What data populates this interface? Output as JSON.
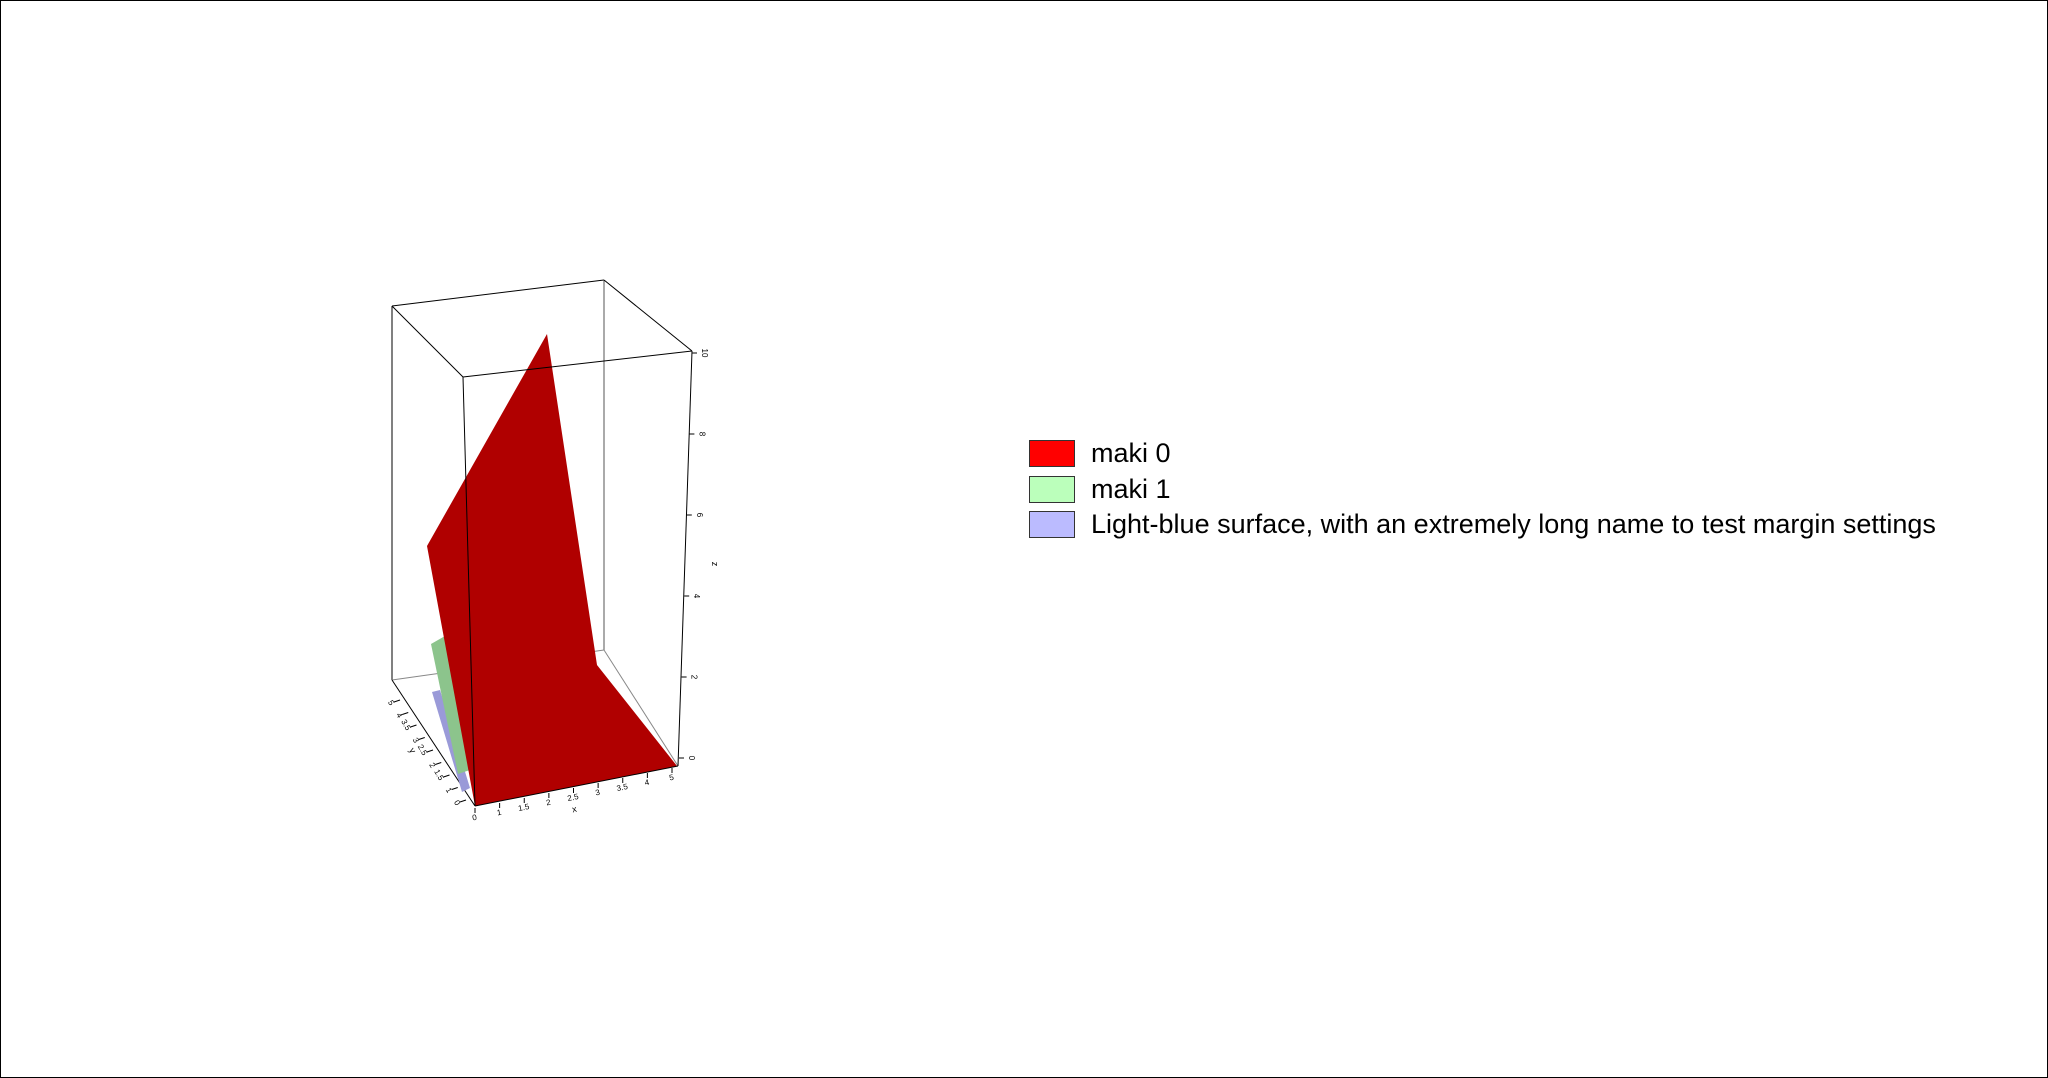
{
  "chart_data": {
    "type": "surface3d",
    "axes": {
      "x": {
        "label": "x",
        "ticks": [
          "0",
          "1",
          "1.5",
          "2",
          "2.5",
          "3",
          "3.5",
          "4",
          "5"
        ]
      },
      "y": {
        "label": "y",
        "ticks": [
          "0",
          "1",
          "1.5",
          "2",
          "2.5",
          "3",
          "3.5",
          "4",
          "5"
        ]
      },
      "z": {
        "label": "z",
        "ticks": [
          "0",
          "2",
          "4",
          "6",
          "8",
          "10"
        ]
      }
    },
    "series": [
      {
        "name": "maki 0",
        "color": "#FF0000",
        "shaded_color": "#B00000"
      },
      {
        "name": "maki 1",
        "color": "#BBFFBB",
        "shaded_color": "#6E9A6E"
      },
      {
        "name": "Light-blue surface, with an extremely long name to test margin settings",
        "color": "#BBBBFF",
        "shaded_color": "#5A5A90"
      }
    ],
    "legend_position": "right"
  }
}
